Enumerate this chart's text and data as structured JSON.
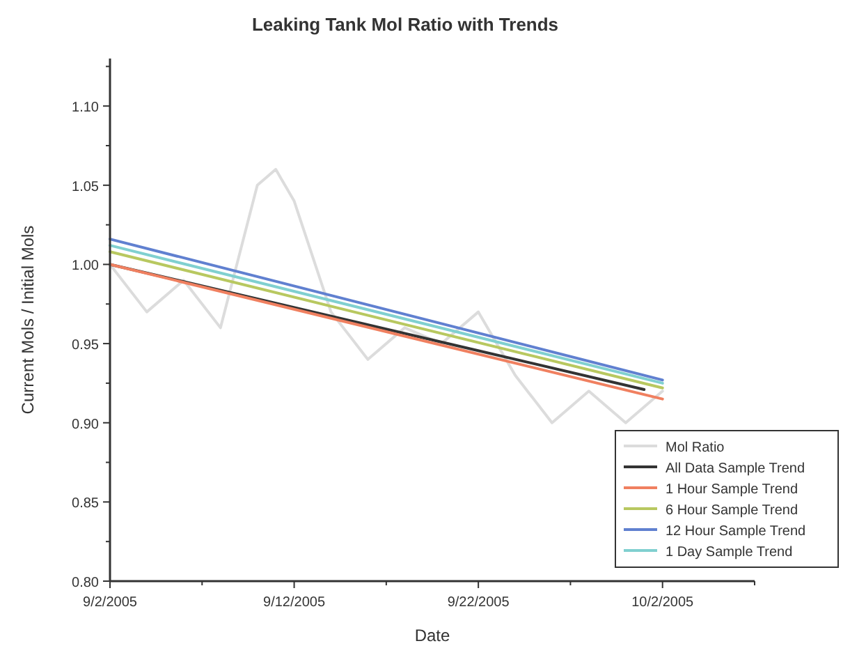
{
  "chart_data": {
    "type": "line",
    "title": "Leaking Tank Mol Ratio with Trends",
    "xlabel": "Date",
    "ylabel": "Current Mols / Initial Mols",
    "xlim": [
      "2005-09-02",
      "2005-10-07"
    ],
    "xticks": [
      {
        "value": "2005-09-02",
        "label": "9/2/2005"
      },
      {
        "value": "2005-09-07",
        "label": null
      },
      {
        "value": "2005-09-12",
        "label": "9/12/2005"
      },
      {
        "value": "2005-09-17",
        "label": null
      },
      {
        "value": "2005-09-22",
        "label": "9/22/2005"
      },
      {
        "value": "2005-09-27",
        "label": null
      },
      {
        "value": "2005-10-02",
        "label": "10/2/2005"
      },
      {
        "value": "2005-10-07",
        "label": null
      }
    ],
    "ylim": [
      0.8,
      1.13
    ],
    "yticks": [
      {
        "value": 0.8,
        "label": "0.80"
      },
      {
        "value": 0.825,
        "label": null
      },
      {
        "value": 0.85,
        "label": "0.85"
      },
      {
        "value": 0.875,
        "label": null
      },
      {
        "value": 0.9,
        "label": "0.90"
      },
      {
        "value": 0.925,
        "label": null
      },
      {
        "value": 0.95,
        "label": "0.95"
      },
      {
        "value": 0.975,
        "label": null
      },
      {
        "value": 1.0,
        "label": "1.00"
      },
      {
        "value": 1.025,
        "label": null
      },
      {
        "value": 1.05,
        "label": "1.05"
      },
      {
        "value": 1.075,
        "label": null
      },
      {
        "value": 1.1,
        "label": "1.10"
      },
      {
        "value": 1.125,
        "label": null
      }
    ],
    "legend": "bottom right",
    "grid": false,
    "line_style": "solid",
    "series": [
      {
        "name": "Mol Ratio",
        "color": "#dcdcdc",
        "x": [
          "2005-09-02",
          "2005-09-04",
          "2005-09-06",
          "2005-09-08",
          "2005-09-10",
          "2005-09-11",
          "2005-09-12",
          "2005-09-14",
          "2005-09-16",
          "2005-09-18",
          "2005-09-20",
          "2005-09-22",
          "2005-09-24",
          "2005-09-26",
          "2005-09-28",
          "2005-09-30",
          "2005-10-02"
        ],
        "values": [
          1.0,
          0.97,
          0.99,
          0.96,
          1.05,
          1.06,
          1.04,
          0.97,
          0.94,
          0.96,
          0.95,
          0.97,
          0.93,
          0.9,
          0.92,
          0.9,
          0.92
        ]
      },
      {
        "name": "All Data Sample Trend",
        "color": "#333333",
        "x": [
          "2005-09-02",
          "2005-10-01"
        ],
        "values": [
          1.0,
          0.921
        ]
      },
      {
        "name": "1 Hour Sample Trend",
        "color": "#f08060",
        "x": [
          "2005-09-02",
          "2005-10-02"
        ],
        "values": [
          1.0,
          0.915
        ]
      },
      {
        "name": "6 Hour Sample Trend",
        "color": "#b8c860",
        "x": [
          "2005-09-02",
          "2005-10-02"
        ],
        "values": [
          1.008,
          0.922
        ]
      },
      {
        "name": "12 Hour Sample Trend",
        "color": "#6080d0",
        "x": [
          "2005-09-02",
          "2005-10-02"
        ],
        "values": [
          1.016,
          0.927
        ]
      },
      {
        "name": "1 Day Sample Trend",
        "color": "#80d0d0",
        "x": [
          "2005-09-02",
          "2005-10-02"
        ],
        "values": [
          1.012,
          0.925
        ]
      }
    ]
  }
}
